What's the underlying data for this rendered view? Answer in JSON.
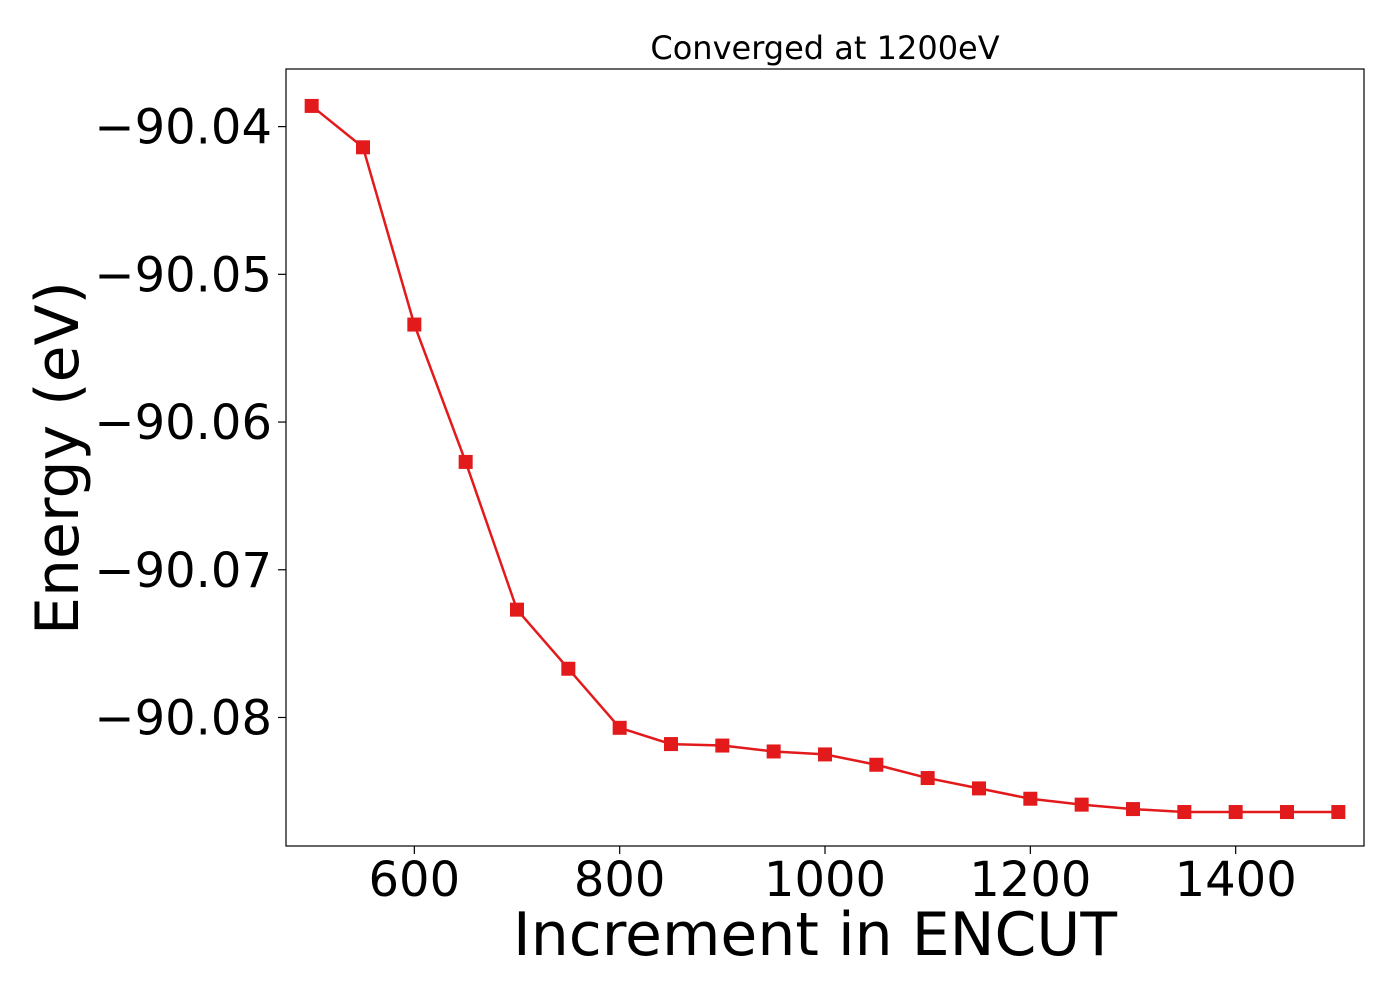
{
  "chart_data": {
    "type": "line",
    "title": "Converged at 1200eV",
    "xlabel": "Increment in ENCUT",
    "ylabel": "Energy (eV)",
    "xlim": [
      475,
      1525
    ],
    "ylim": [
      -90.0887,
      -90.0361
    ],
    "xticks": [
      600,
      800,
      1000,
      1200,
      1400
    ],
    "xtick_labels": [
      "600",
      "800",
      "1000",
      "1200",
      "1400"
    ],
    "yticks": [
      -90.04,
      -90.05,
      -90.06,
      -90.07,
      -90.08
    ],
    "ytick_labels": [
      "−90.04",
      "−90.05",
      "−90.06",
      "−90.07",
      "−90.08"
    ],
    "grid": false,
    "marker": "square",
    "color": "#e31a1c",
    "series": [
      {
        "x": [
          500,
          550,
          600,
          650,
          700,
          750,
          800,
          850,
          900,
          950,
          1000,
          1050,
          1100,
          1150,
          1200,
          1250,
          1300,
          1350,
          1400,
          1450,
          1500
        ],
        "y": [
          -90.0386,
          -90.0414,
          -90.0534,
          -90.0627,
          -90.0727,
          -90.0767,
          -90.0807,
          -90.0818,
          -90.0819,
          -90.0823,
          -90.0825,
          -90.0832,
          -90.0841,
          -90.0848,
          -90.0855,
          -90.0859,
          -90.0862,
          -90.0864,
          -90.0864,
          -90.0864,
          -90.0864
        ]
      }
    ]
  }
}
